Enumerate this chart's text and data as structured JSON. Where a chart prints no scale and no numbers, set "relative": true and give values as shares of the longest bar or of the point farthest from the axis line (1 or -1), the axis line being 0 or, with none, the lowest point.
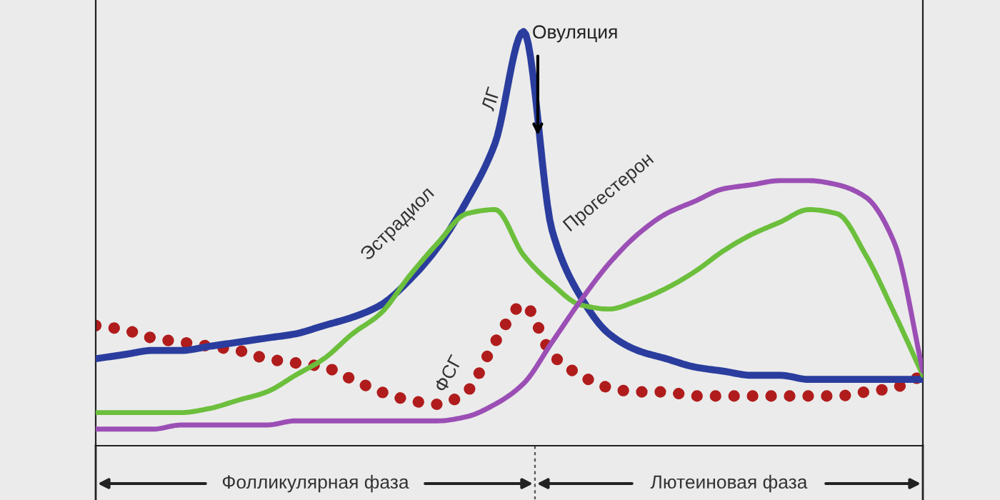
{
  "chart_data": {
    "type": "line",
    "relative": true,
    "legend": false,
    "marker": "none",
    "tick_labels": false,
    "categories": [
      null,
      null,
      null,
      null,
      null,
      null,
      null,
      null,
      null,
      null,
      null,
      null,
      null,
      null,
      null,
      null,
      null,
      null,
      null,
      null,
      null,
      null,
      null,
      null,
      null,
      null,
      null,
      null,
      null,
      null
    ],
    "series": [
      {
        "name": "ЛГ",
        "color": "#2a3d9e",
        "line_style": "solid",
        "values": [
          0.21,
          0.22,
          0.23,
          0.23,
          0.24,
          0.25,
          0.26,
          0.27,
          0.29,
          0.31,
          0.34,
          0.4,
          0.48,
          0.59,
          0.73,
          1.0,
          0.52,
          0.36,
          0.27,
          0.23,
          0.21,
          0.19,
          0.18,
          0.17,
          0.17,
          0.16,
          0.16,
          0.16,
          0.16,
          0.16
        ]
      },
      {
        "name": "Эстрадиол",
        "color": "#6cbf3c",
        "line_style": "solid",
        "values": [
          0.08,
          0.08,
          0.08,
          0.08,
          0.09,
          0.11,
          0.13,
          0.17,
          0.21,
          0.27,
          0.32,
          0.41,
          0.49,
          0.56,
          0.57,
          0.46,
          0.39,
          0.34,
          0.33,
          0.35,
          0.38,
          0.42,
          0.47,
          0.51,
          0.54,
          0.57,
          0.56,
          0.46,
          0.32,
          0.17
        ]
      },
      {
        "name": "ФСГ",
        "color": "#b01c1c",
        "line_style": "dotted",
        "values": [
          0.29,
          0.28,
          0.26,
          0.25,
          0.24,
          0.23,
          0.21,
          0.2,
          0.19,
          0.16,
          0.13,
          0.11,
          0.1,
          0.13,
          0.25,
          0.34,
          0.22,
          0.17,
          0.14,
          0.13,
          0.13,
          0.12,
          0.12,
          0.12,
          0.12,
          0.12,
          0.12,
          0.13,
          0.14,
          0.17
        ]
      },
      {
        "name": "Прогестерон",
        "color": "#9b4fb5",
        "line_style": "solid",
        "values": [
          0.04,
          0.04,
          0.04,
          0.05,
          0.05,
          0.05,
          0.05,
          0.06,
          0.06,
          0.06,
          0.06,
          0.06,
          0.06,
          0.07,
          0.1,
          0.15,
          0.25,
          0.35,
          0.44,
          0.51,
          0.56,
          0.59,
          0.62,
          0.63,
          0.64,
          0.64,
          0.63,
          0.6,
          0.49,
          0.18
        ]
      }
    ],
    "annotations": [
      "Овуляция",
      "Фолликулярная фаза",
      "Лютеиновая фаза"
    ]
  }
}
